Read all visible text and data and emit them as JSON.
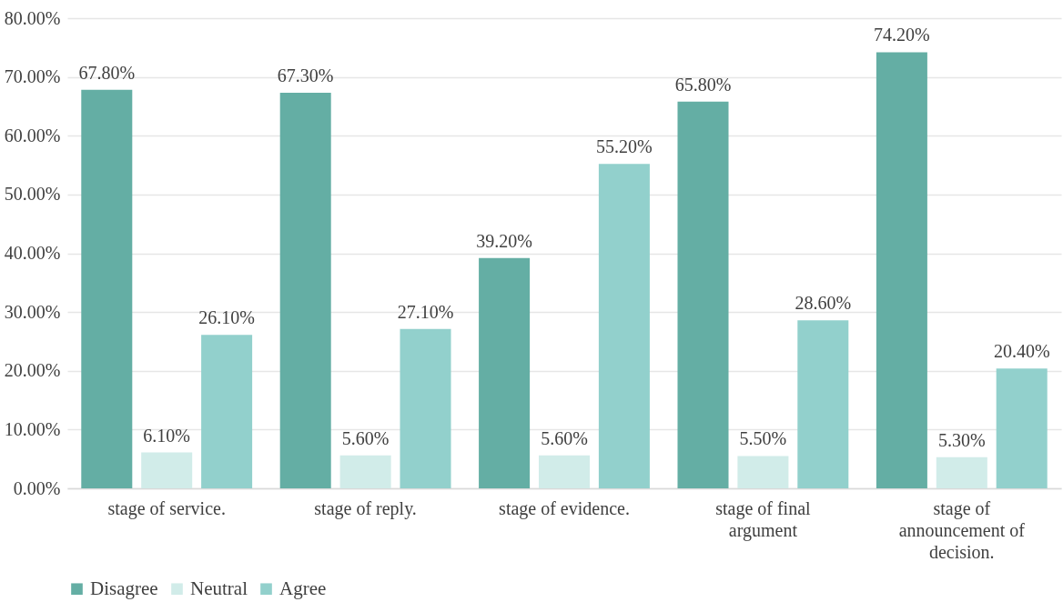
{
  "chart_data": {
    "type": "bar",
    "categories": [
      "stage of service.",
      "stage of reply.",
      "stage of evidence.",
      "stage of final argument",
      "stage of announcement of decision."
    ],
    "series": [
      {
        "name": "Disagree",
        "color": "#64aea4",
        "values": [
          67.8,
          67.3,
          39.2,
          65.8,
          74.2
        ],
        "value_labels": [
          "67.80%",
          "67.30%",
          "39.20%",
          "65.80%",
          "74.20%"
        ]
      },
      {
        "name": "Neutral",
        "color": "#d1ece9",
        "values": [
          6.1,
          5.6,
          5.6,
          5.5,
          5.3
        ],
        "value_labels": [
          "6.10%",
          "5.60%",
          "5.60%",
          "5.50%",
          "5.30%"
        ]
      },
      {
        "name": "Agree",
        "color": "#92d0cc",
        "values": [
          26.1,
          27.1,
          55.2,
          28.6,
          20.4
        ],
        "value_labels": [
          "26.10%",
          "27.10%",
          "55.20%",
          "28.60%",
          "20.40%"
        ]
      }
    ],
    "ylim": [
      0,
      80
    ],
    "yticks": [
      {
        "value": 0,
        "label": "0.00%"
      },
      {
        "value": 10,
        "label": "10.00%"
      },
      {
        "value": 20,
        "label": "20.00%"
      },
      {
        "value": 30,
        "label": "30.00%"
      },
      {
        "value": 40,
        "label": "40.00%"
      },
      {
        "value": 50,
        "label": "50.00%"
      },
      {
        "value": 60,
        "label": "60.00%"
      },
      {
        "value": 70,
        "label": "70.00%"
      },
      {
        "value": 80,
        "label": "80.00%"
      }
    ],
    "grid": "y",
    "legend": "bottom"
  }
}
